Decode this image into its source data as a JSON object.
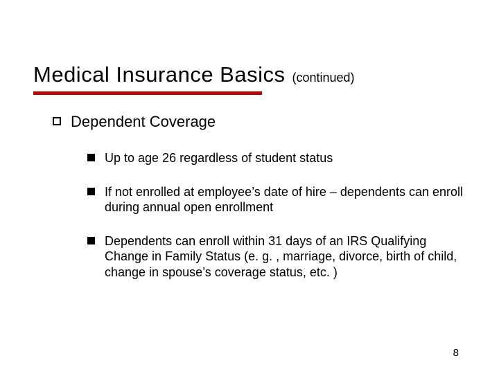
{
  "slide": {
    "title": "Medical Insurance Basics",
    "title_suffix": "(continued)",
    "title_fontsize": 31,
    "suffix_fontsize": 18,
    "underline_color": "#c00000",
    "underline_width": 330,
    "underline_height": 5,
    "background_color": "#ffffff",
    "text_color": "#000000",
    "level1": {
      "bullet_style": "hollow-square",
      "bullet_size": 12,
      "fontsize": 22,
      "text": "Dependent Coverage"
    },
    "level2": {
      "bullet_style": "solid-square",
      "bullet_size": 11,
      "fontsize": 18,
      "items": [
        "Up to age 26 regardless of student status",
        "If not enrolled at employee’s date of hire – dependents can enroll during annual open enrollment",
        "Dependents can enroll within 31 days of an IRS Qualifying Change in Family Status (e. g. , marriage, divorce, birth of child, change in spouse’s coverage status, etc. )"
      ]
    },
    "page_number": "8",
    "page_number_fontsize": 15
  }
}
